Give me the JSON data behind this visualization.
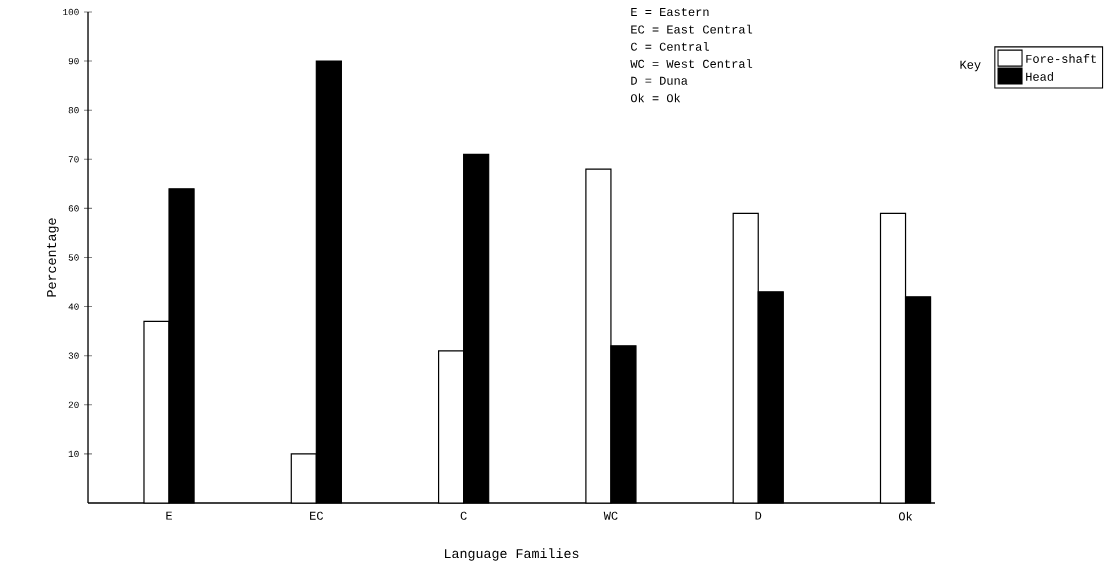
{
  "chart_data": {
    "type": "bar",
    "xlabel": "Language Families",
    "ylabel": "Percentage",
    "legend_title": "Key",
    "legend": "top right",
    "categories": [
      "E",
      "EC",
      "C",
      "WC",
      "D",
      "Ok"
    ],
    "series": [
      {
        "name": "Fore-shaft",
        "color": "#ffffff",
        "values": [
          37,
          10,
          31,
          68,
          59,
          59
        ]
      },
      {
        "name": "Head",
        "color": "#000000",
        "values": [
          64,
          90,
          71,
          32,
          43,
          42
        ]
      }
    ],
    "ylim": [
      0,
      100
    ],
    "yticks": [
      10,
      20,
      30,
      40,
      50,
      60,
      70,
      80,
      90,
      100
    ],
    "annotations": [
      "E = Eastern",
      "EC = East Central",
      "C = Central",
      "WC = West Central",
      "D = Duna",
      "Ok = Ok"
    ]
  }
}
